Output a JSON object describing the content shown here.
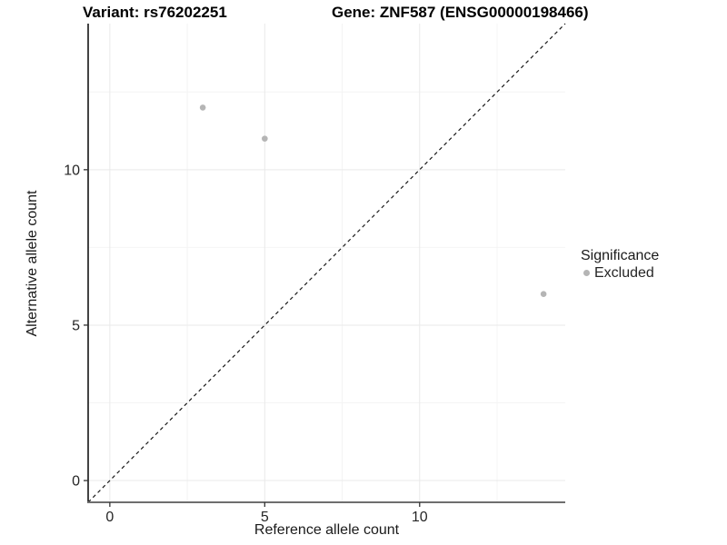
{
  "chart_data": {
    "type": "scatter",
    "title_left": "Variant: rs76202251",
    "title_right": "Gene: ZNF587 (ENSG00000198466)",
    "xlabel": "Reference allele count",
    "ylabel": "Alternative allele count",
    "xlim": [
      -0.7,
      14.7
    ],
    "ylim": [
      -0.7,
      14.7
    ],
    "x_ticks": [
      0,
      5,
      10
    ],
    "y_ticks": [
      0,
      5,
      10
    ],
    "x_minor_ticks": [
      2.5,
      7.5,
      12.5
    ],
    "y_minor_ticks": [
      2.5,
      7.5,
      12.5
    ],
    "grid": "major-and-minor",
    "identity_line": {
      "style": "dashed",
      "slope": 1,
      "intercept": 0
    },
    "series": [
      {
        "name": "Excluded",
        "color": "#b5b5b5",
        "points": [
          {
            "x": 3,
            "y": 12
          },
          {
            "x": 5,
            "y": 11
          },
          {
            "x": 14,
            "y": 6
          }
        ]
      }
    ],
    "legend": {
      "title": "Significance",
      "position": "right",
      "items": [
        {
          "label": "Excluded",
          "color": "#b5b5b5",
          "marker": "circle"
        }
      ]
    },
    "colors": {
      "background": "#ffffff",
      "grid_major": "#e9e9e9",
      "grid_minor": "#f4f4f4",
      "axis_line_left": "#141414",
      "axis_line_bottom": "#6e6e6e",
      "tick_mark": "#333333",
      "tick_label": "#262626",
      "identity_line": "#1a1a1a",
      "point": "#b5b5b5"
    }
  }
}
